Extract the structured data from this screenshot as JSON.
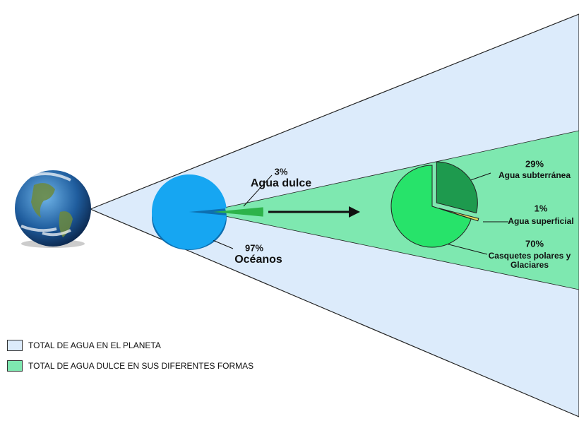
{
  "chart_data": [
    {
      "type": "pie",
      "categories": [
        "Océanos",
        "Agua dulce"
      ],
      "values": [
        97,
        3
      ],
      "value_labels": [
        "97%",
        "3%"
      ],
      "colors": [
        "#16a6f2",
        "#2db34a"
      ]
    },
    {
      "type": "pie",
      "categories": [
        "Agua  subterránea",
        "Agua superficial",
        "Casquetes polares y Glaciares"
      ],
      "values": [
        29,
        1,
        70
      ],
      "value_labels": [
        "29%",
        "1%",
        "70%"
      ],
      "colors": [
        "#1e9a4e",
        "#e8e25a",
        "#27e36a"
      ]
    }
  ],
  "legend": [
    {
      "label": "TOTAL DE AGUA  EN EL PLANETA",
      "color": "#dcebfb"
    },
    {
      "label": "TOTAL DE AGUA DULCE EN SUS DIFERENTES FORMAS",
      "color": "#7ee8b0"
    }
  ]
}
